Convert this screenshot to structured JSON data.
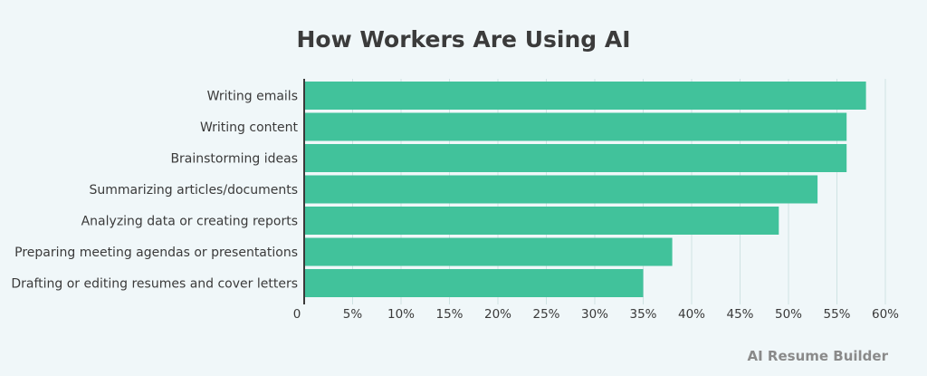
{
  "chart_data": {
    "type": "bar",
    "orientation": "horizontal",
    "title": "How Workers Are Using AI",
    "categories": [
      "Writing emails",
      "Writing content",
      "Brainstorming ideas",
      "Summarizing articles/documents",
      "Analyzing data or creating reports",
      "Preparing meeting agendas or presentations",
      "Drafting or editing resumes and cover letters"
    ],
    "values": [
      58,
      56,
      56,
      53,
      49,
      38,
      35
    ],
    "xlim": [
      0,
      60
    ],
    "x_ticks": [
      0,
      5,
      10,
      15,
      20,
      25,
      30,
      35,
      40,
      45,
      50,
      55,
      60
    ],
    "x_tick_labels": [
      "0",
      "5%",
      "10%",
      "15%",
      "20%",
      "25%",
      "30%",
      "35%",
      "40%",
      "45%",
      "50%",
      "55%",
      "60%"
    ],
    "xlabel": "",
    "ylabel": "",
    "grid": true,
    "legend": "none",
    "colors": {
      "bar": "#41c29b",
      "grid": "#cfe3e3",
      "axis": "#3a3a3a",
      "background": "#f0f7f9"
    }
  },
  "watermark": "AI Resume Builder"
}
